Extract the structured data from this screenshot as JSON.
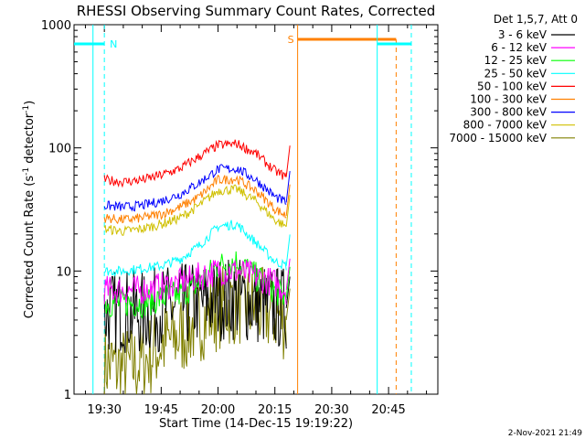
{
  "chart_data": {
    "type": "line",
    "title": "RHESSI Observing Summary Count Rates, Corrected",
    "xlabel": "Start Time (14-Dec-15 19:19:22)",
    "ylabel": "Corrected Count Rate (s",
    "ylabel_sup1": "-1",
    "ylabel_mid": " detector",
    "ylabel_sup2": "-1",
    "ylabel_end": ")",
    "yscale": "log",
    "ylim": [
      1,
      1000
    ],
    "xlim": [
      "19:22",
      "20:58"
    ],
    "x_ticks": [
      "19:30",
      "19:45",
      "20:00",
      "20:15",
      "20:30",
      "20:45"
    ],
    "y_ticks": [
      "1",
      "10",
      "100",
      "1000"
    ],
    "footer_date": "2-Nov-2021 21:49",
    "legend_header": "Det 1,5,7, Att 0",
    "annotations": [
      {
        "label": "N",
        "color": "#00ffff"
      },
      {
        "label": "S",
        "color": "#ff8000"
      }
    ],
    "series": [
      {
        "name": "3 - 6 keV",
        "color": "#000000",
        "x": [
          "19:30",
          "19:35",
          "19:40",
          "19:45",
          "19:50",
          "19:55",
          "20:00",
          "20:05",
          "20:10",
          "20:15",
          "20:18"
        ],
        "values": [
          4.5,
          4.8,
          4.5,
          5,
          5.2,
          5.5,
          6,
          6,
          5.5,
          5,
          5
        ]
      },
      {
        "name": "6 - 12 keV",
        "color": "#ff00ff",
        "x": [
          "19:30",
          "19:35",
          "19:40",
          "19:45",
          "19:50",
          "19:55",
          "20:00",
          "20:05",
          "20:10",
          "20:15",
          "20:18"
        ],
        "values": [
          7,
          7,
          7,
          7.5,
          8,
          9,
          10,
          10,
          9,
          8,
          7
        ]
      },
      {
        "name": "12 - 25 keV",
        "color": "#00ff00",
        "x": [
          "19:30",
          "19:35",
          "19:40",
          "19:45",
          "19:50",
          "19:55",
          "20:00",
          "20:05",
          "20:10",
          "20:15",
          "20:18"
        ],
        "values": [
          5.5,
          5.5,
          5.5,
          6,
          6.5,
          8,
          11,
          12,
          9,
          7,
          6
        ]
      },
      {
        "name": "25 - 50 keV",
        "color": "#00ffff",
        "x": [
          "19:30",
          "19:35",
          "19:40",
          "19:45",
          "19:50",
          "19:55",
          "20:00",
          "20:05",
          "20:10",
          "20:15",
          "20:18"
        ],
        "values": [
          10,
          10,
          10.5,
          11,
          12.5,
          16,
          23,
          24,
          17,
          12,
          11
        ]
      },
      {
        "name": "50 - 100 keV",
        "color": "#ff0000",
        "x": [
          "19:30",
          "19:35",
          "19:40",
          "19:45",
          "19:50",
          "19:55",
          "20:00",
          "20:05",
          "20:10",
          "20:15",
          "20:18"
        ],
        "values": [
          55,
          53,
          55,
          60,
          68,
          85,
          105,
          108,
          90,
          65,
          58
        ]
      },
      {
        "name": "100 - 300 keV",
        "color": "#ff8000",
        "x": [
          "19:30",
          "19:35",
          "19:40",
          "19:45",
          "19:50",
          "19:55",
          "20:00",
          "20:05",
          "20:10",
          "20:15",
          "20:18"
        ],
        "values": [
          27,
          26,
          27,
          29,
          33,
          40,
          55,
          56,
          45,
          32,
          28
        ]
      },
      {
        "name": "300 - 800 keV",
        "color": "#0000ff",
        "x": [
          "19:30",
          "19:35",
          "19:40",
          "19:45",
          "19:50",
          "19:55",
          "20:00",
          "20:05",
          "20:10",
          "20:15",
          "20:18"
        ],
        "values": [
          34,
          33,
          34,
          37,
          42,
          52,
          67,
          68,
          55,
          40,
          36
        ]
      },
      {
        "name": "800 - 7000 keV",
        "color": "#d0c000",
        "x": [
          "19:30",
          "19:35",
          "19:40",
          "19:45",
          "19:50",
          "19:55",
          "20:00",
          "20:05",
          "20:10",
          "20:15",
          "20:18"
        ],
        "values": [
          22,
          21,
          22,
          24,
          27,
          34,
          45,
          46,
          37,
          26,
          23
        ]
      },
      {
        "name": "7000 - 15000 keV",
        "color": "#808000",
        "x": [
          "19:30",
          "19:35",
          "19:40",
          "19:45",
          "19:50",
          "19:55",
          "20:00",
          "20:05",
          "20:10",
          "20:15",
          "20:18"
        ],
        "values": [
          1.8,
          1.6,
          1.8,
          2.5,
          3,
          4,
          5,
          5.5,
          5,
          4.5,
          4
        ]
      }
    ]
  }
}
